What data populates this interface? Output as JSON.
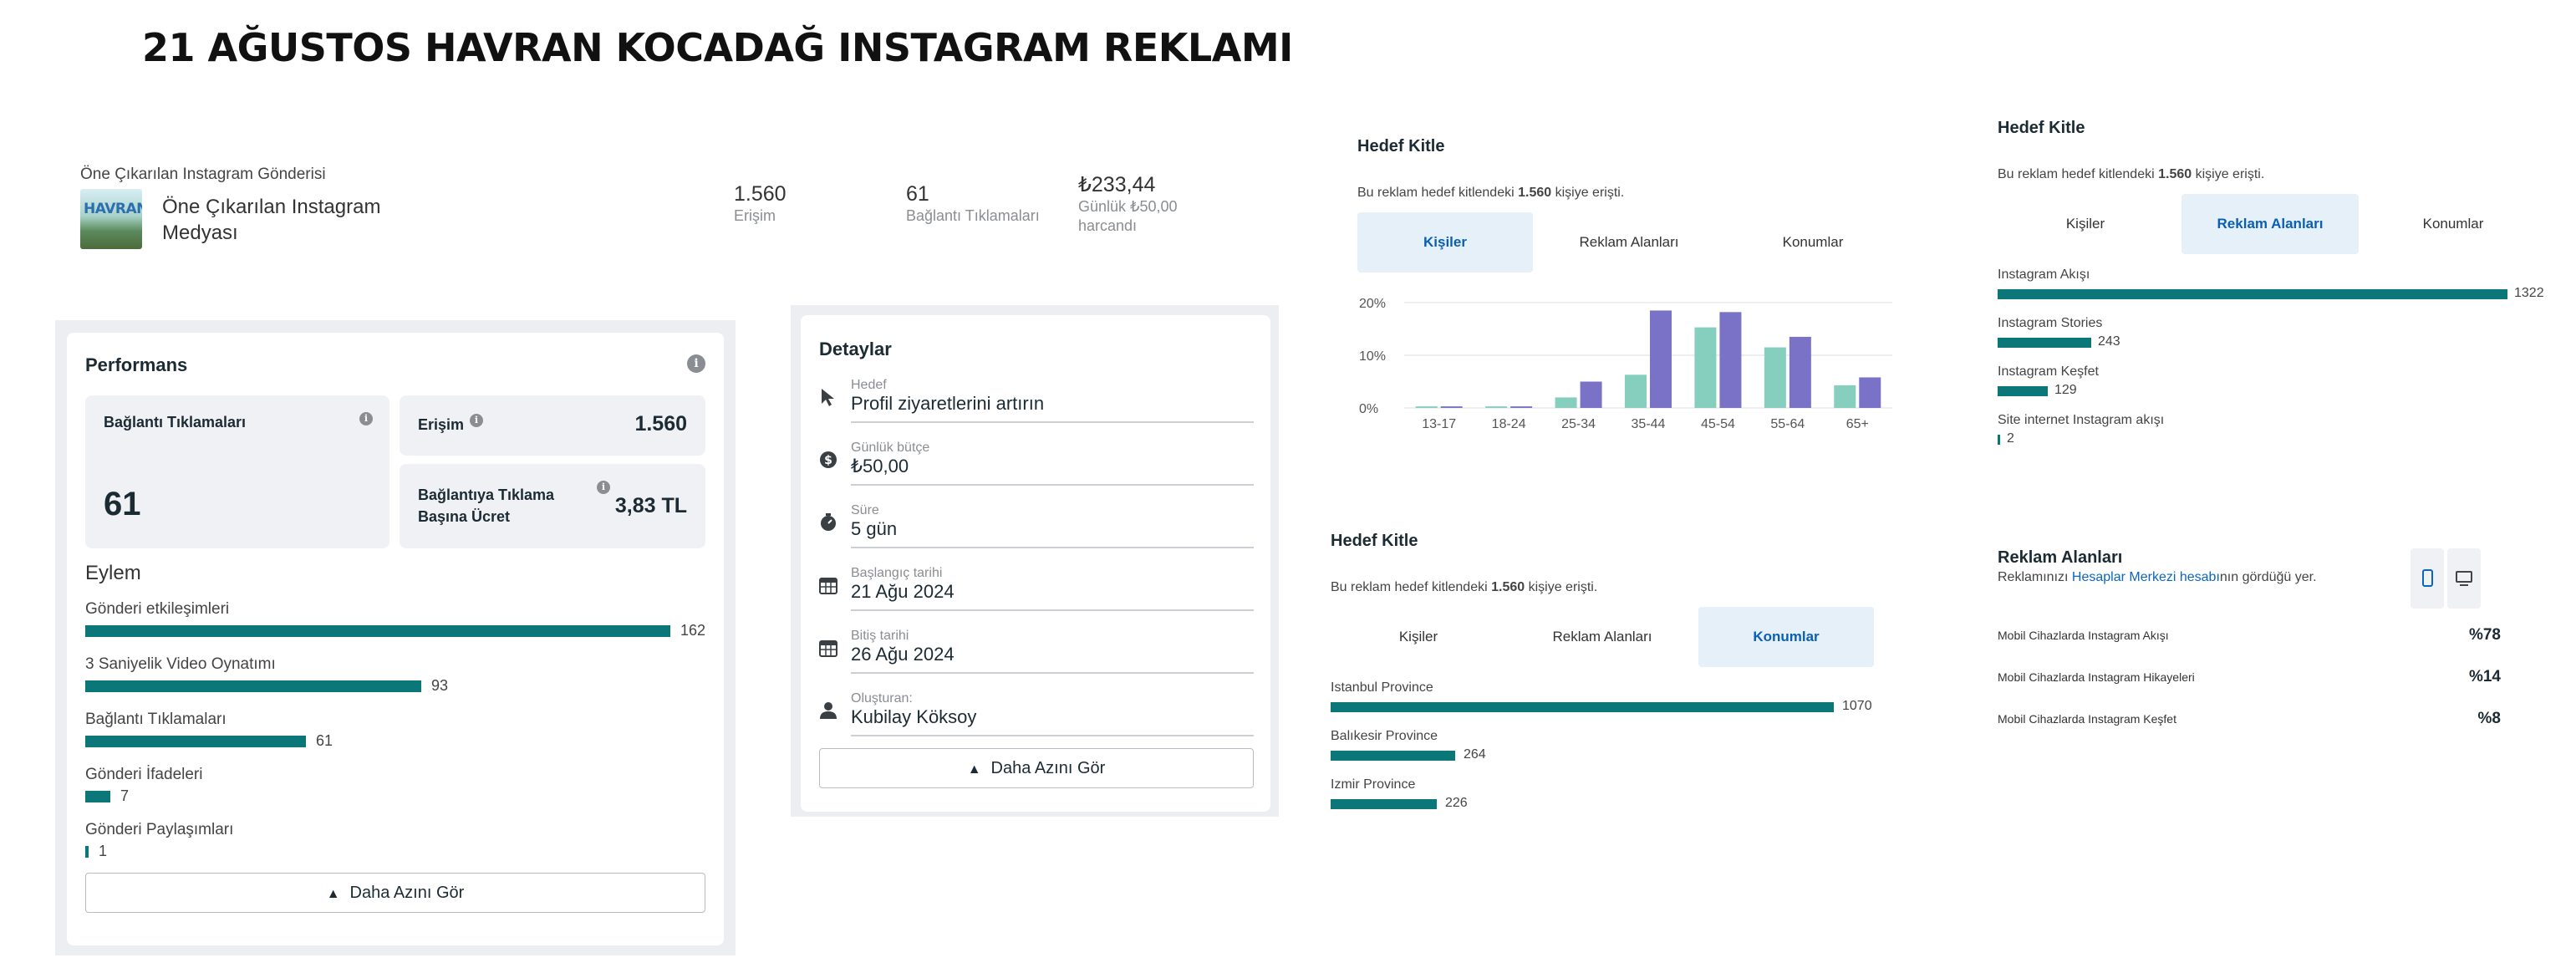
{
  "title": "21 AĞUSTOS HAVRAN KOCADAĞ INSTAGRAM REKLAMI",
  "post": {
    "caption": "Öne Çıkarılan Instagram Gönderisi",
    "thumb_text": "HAVRAN",
    "name": "Öne Çıkarılan Instagram Medyası",
    "stats": [
      {
        "value": "1.560",
        "label": "Erişim"
      },
      {
        "value": "61",
        "label": "Bağlantı Tıklamaları"
      },
      {
        "value": "₺233,44",
        "label": "Günlük ₺50,00 harcandı"
      }
    ]
  },
  "performance": {
    "title": "Performans",
    "link_clicks_label": "Bağlantı Tıklamaları",
    "link_clicks_value": "61",
    "reach_label": "Erişim",
    "reach_value": "1.560",
    "cpc_label": "Bağlantıya Tıklama Başına Ücret",
    "cpc_value": "3,83 TL",
    "eylem_title": "Eylem",
    "actions": [
      {
        "label": "Gönderi etkileşimleri",
        "value": 162
      },
      {
        "label": "3 Saniyelik Video Oynatımı",
        "value": 93
      },
      {
        "label": "Bağlantı Tıklamaları",
        "value": 61
      },
      {
        "label": "Gönderi İfadeleri",
        "value": 7
      },
      {
        "label": "Gönderi Paylaşımları",
        "value": 1
      }
    ],
    "button": "Daha Azını Gör"
  },
  "details": {
    "title": "Detaylar",
    "rows": [
      {
        "icon": "cursor-icon",
        "label": "Hedef",
        "value": "Profil ziyaretlerini artırın"
      },
      {
        "icon": "dollar-icon",
        "label": "Günlük bütçe",
        "value": "₺50,00"
      },
      {
        "icon": "timer-icon",
        "label": "Süre",
        "value": "5 gün"
      },
      {
        "icon": "calendar-icon",
        "label": "Başlangıç tarihi",
        "value": "21 Ağu 2024"
      },
      {
        "icon": "calendar-icon",
        "label": "Bitiş tarihi",
        "value": "26 Ağu 2024"
      },
      {
        "icon": "person-icon",
        "label": "Oluşturan:",
        "value": "Kubilay Köksoy"
      }
    ],
    "button": "Daha Azını Gör"
  },
  "audience_age": {
    "title": "Hedef Kitle",
    "subtitle_pre": "Bu reklam hedef kitlendeki ",
    "subtitle_num": "1.560",
    "subtitle_post": " kişiye erişti.",
    "tabs": [
      "Kişiler",
      "Reklam Alanları",
      "Konumlar"
    ],
    "active_tab": 0
  },
  "chart_data": {
    "type": "bar",
    "categories": [
      "13-17",
      "18-24",
      "25-34",
      "35-44",
      "45-54",
      "55-64",
      "65+"
    ],
    "series": [
      {
        "values": [
          0.3,
          0.3,
          2,
          6.3,
          15.3,
          11.5,
          4.3
        ],
        "color": "#86cfbe"
      },
      {
        "values": [
          0.3,
          0.3,
          5,
          18.5,
          18.2,
          13.5,
          5.8
        ],
        "color": "#7a72c6"
      }
    ],
    "yticks": [
      "0%",
      "10%",
      "20%"
    ],
    "ylim": [
      0,
      20
    ],
    "grid": true
  },
  "audience_placements": {
    "title": "Hedef Kitle",
    "subtitle_pre": "Bu reklam hedef kitlendeki ",
    "subtitle_num": "1.560",
    "subtitle_post": " kişiye erişti.",
    "tabs": [
      "Kişiler",
      "Reklam Alanları",
      "Konumlar"
    ],
    "active_tab": 1,
    "items": [
      {
        "label": "Instagram Akışı",
        "value": 1322
      },
      {
        "label": "Instagram Stories",
        "value": 243
      },
      {
        "label": "Instagram Keşfet",
        "value": 129
      },
      {
        "label": "Site internet Instagram akışı",
        "value": 2
      }
    ]
  },
  "audience_locations": {
    "title": "Hedef Kitle",
    "subtitle_pre": "Bu reklam hedef kitlendeki ",
    "subtitle_num": "1.560",
    "subtitle_post": " kişiye erişti.",
    "tabs": [
      "Kişiler",
      "Reklam Alanları",
      "Konumlar"
    ],
    "active_tab": 2,
    "items": [
      {
        "label": "Istanbul Province",
        "value": 1070
      },
      {
        "label": "Balıkesir Province",
        "value": 264
      },
      {
        "label": "Izmir Province",
        "value": 226
      }
    ]
  },
  "ad_placements": {
    "title": "Reklam Alanları",
    "subtitle_pre": "Reklamınızı ",
    "subtitle_link": "Hesaplar Merkezi hesabı",
    "subtitle_post": "nın gördüğü yer.",
    "rows": [
      {
        "label": "Mobil Cihazlarda Instagram Akışı",
        "value": "%78"
      },
      {
        "label": "Mobil Cihazlarda Instagram Hikayeleri",
        "value": "%14"
      },
      {
        "label": "Mobil Cihazlarda Instagram Keşfet",
        "value": "%8"
      }
    ]
  },
  "colors": {
    "bar": "#0b7778",
    "tab_active_bg": "#e6f0f9",
    "link": "#0a66c2"
  }
}
